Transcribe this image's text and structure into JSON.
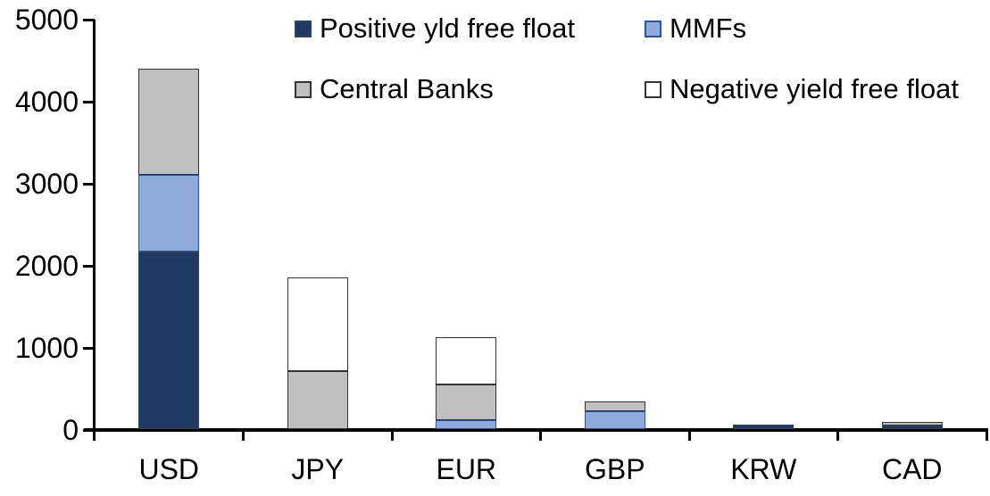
{
  "chart_data": {
    "type": "bar",
    "stacked": true,
    "title": "",
    "xlabel": "",
    "ylabel": "",
    "categories": [
      "USD",
      "JPY",
      "EUR",
      "GBP",
      "KRW",
      "CAD"
    ],
    "series": [
      {
        "name": "Positive yld free float",
        "color": "#1f3864",
        "border_color": "#32415c",
        "values": [
          2160,
          0,
          0,
          0,
          50,
          45
        ]
      },
      {
        "name": "MMFs",
        "color": "#8faadc",
        "border_color": "#2e5395",
        "values": [
          940,
          0,
          105,
          220,
          0,
          0
        ]
      },
      {
        "name": "Central Banks",
        "color": "#c0c0c0",
        "border_color": "#333333",
        "values": [
          1290,
          710,
          435,
          120,
          0,
          40
        ]
      },
      {
        "name": "Negative yield free float",
        "color": "#ffffff",
        "border_color": "#333333",
        "values": [
          0,
          1140,
          575,
          0,
          0,
          0
        ]
      }
    ],
    "ylim": [
      0,
      5000
    ],
    "yticks": [
      0,
      1000,
      2000,
      3000,
      4000,
      5000
    ],
    "grid": false,
    "legend_position": "top",
    "axis_color": "#000000",
    "background_color": "#ffffff"
  }
}
